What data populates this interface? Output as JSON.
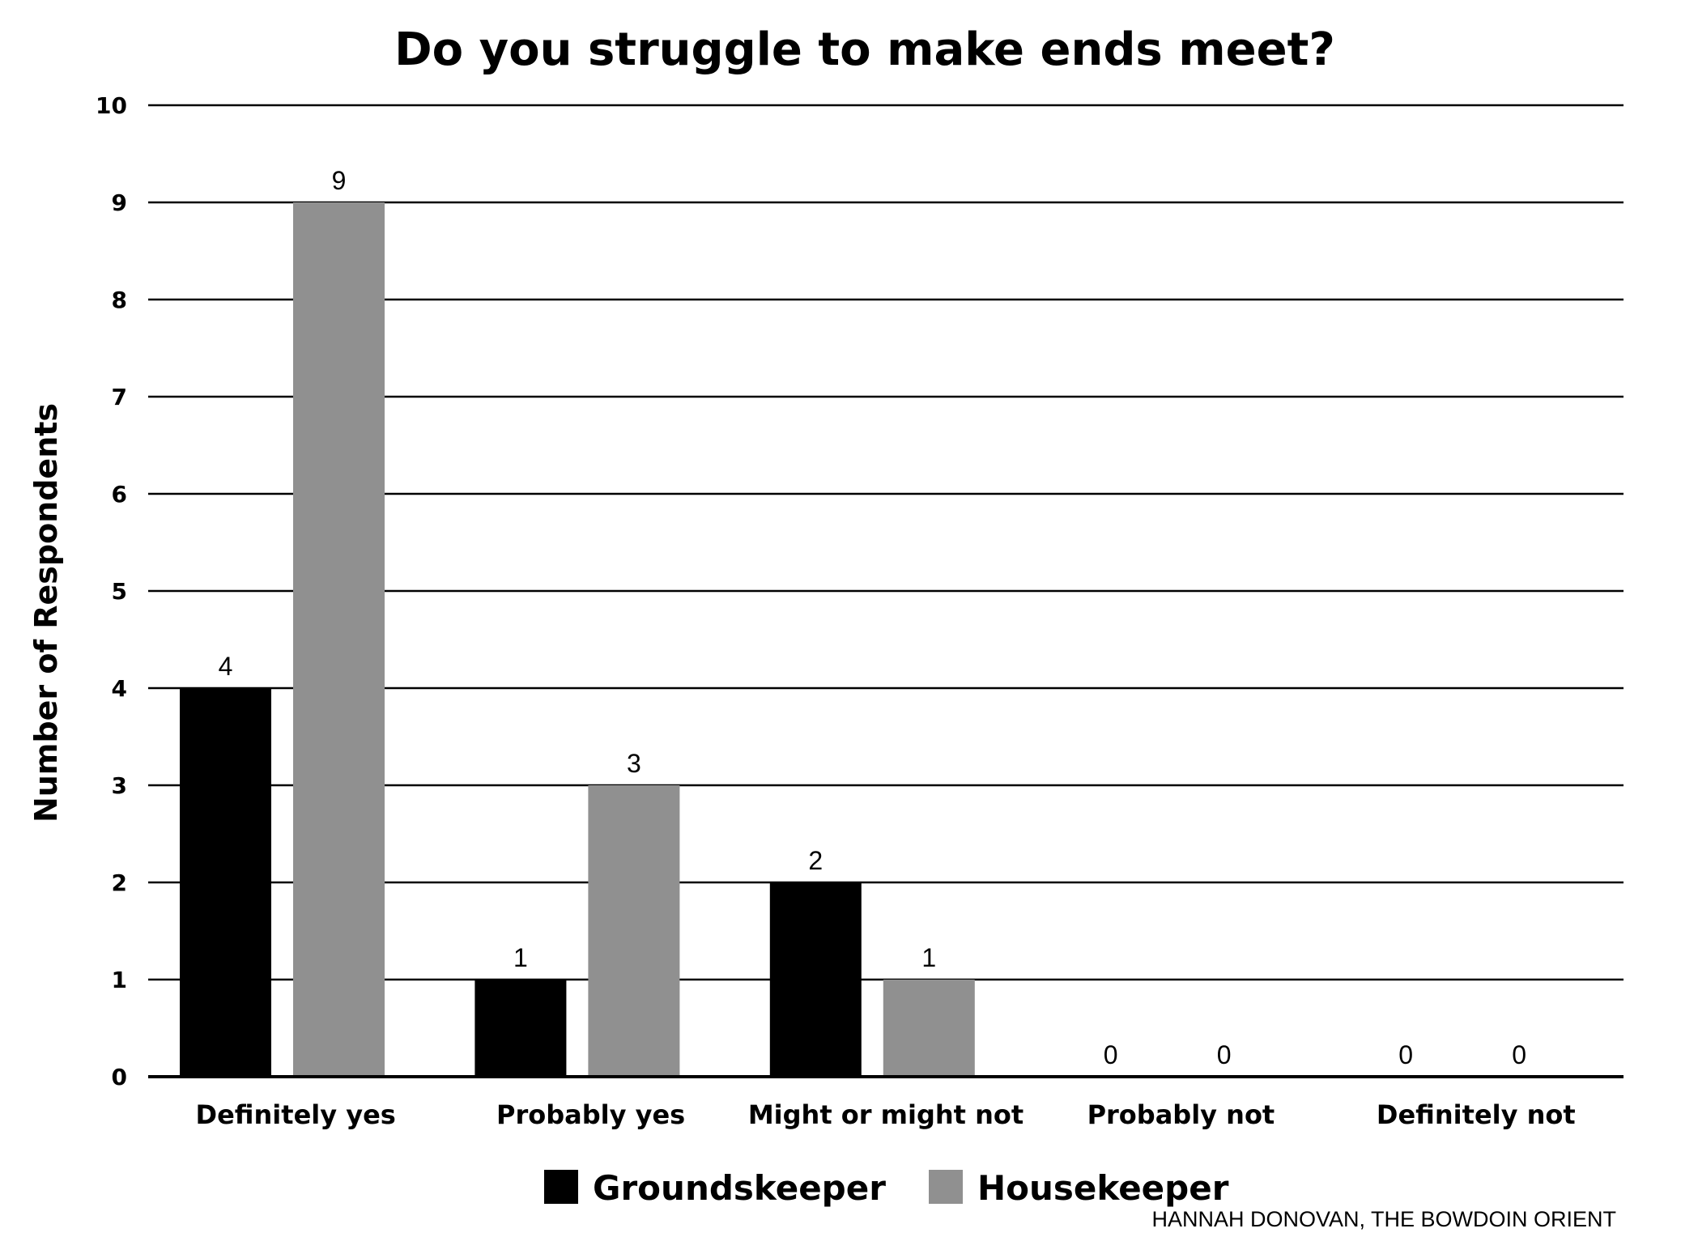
{
  "chart_data": {
    "type": "bar",
    "title": "Do you struggle to make ends meet?",
    "xlabel": "",
    "ylabel": "Number of Respondents",
    "ylim": [
      0,
      10
    ],
    "yticks": [
      "0",
      "1",
      "2",
      "3",
      "4",
      "5",
      "6",
      "7",
      "8",
      "9",
      "10"
    ],
    "categories": [
      "Definitely yes",
      "Probably yes",
      "Might or might not",
      "Probably not",
      "Definitely not"
    ],
    "series": [
      {
        "name": "Groundskeeper",
        "color": "#000000",
        "values": [
          4,
          1,
          2,
          0,
          0
        ]
      },
      {
        "name": "Housekeeper",
        "color": "#909090",
        "values": [
          9,
          3,
          1,
          0,
          0
        ]
      }
    ],
    "grid": true,
    "legend": "bottom-center",
    "data_labels": true
  },
  "credit": "HANNAH DONOVAN, THE BOWDOIN ORIENT"
}
